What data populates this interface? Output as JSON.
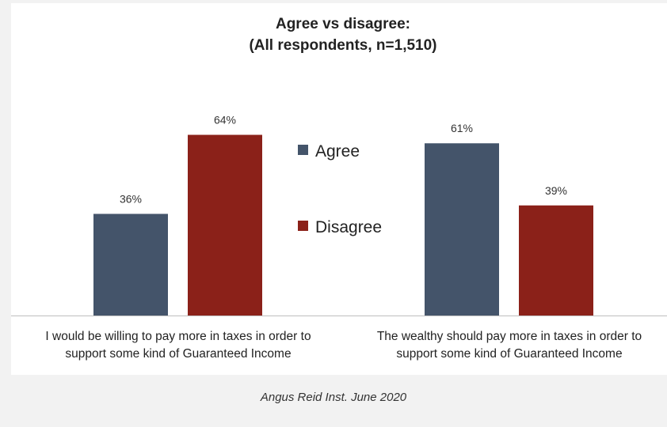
{
  "chart_data": {
    "type": "bar",
    "title": [
      "Agree vs disagree:",
      "(All respondents, n=1,510)"
    ],
    "categories": [
      [
        "I would be willing to pay more in taxes in order to",
        "support some kind of Guaranteed Income"
      ],
      [
        "The wealthy should pay more in taxes in order to",
        "support some kind of Guaranteed Income"
      ]
    ],
    "series": [
      {
        "name": "Agree",
        "values": [
          36,
          61
        ],
        "labels": [
          "36%",
          "61%"
        ]
      },
      {
        "name": "Disagree",
        "values": [
          64,
          39
        ],
        "labels": [
          "64%",
          "39%"
        ]
      }
    ],
    "ylim": [
      0,
      100
    ],
    "xlabel": "",
    "ylabel": "",
    "legend_position": "center",
    "colors": {
      "Agree": "#44546a",
      "Disagree": "#8b2119",
      "axis": "#bfbfbf"
    }
  },
  "source": "Angus Reid Inst. June 2020"
}
